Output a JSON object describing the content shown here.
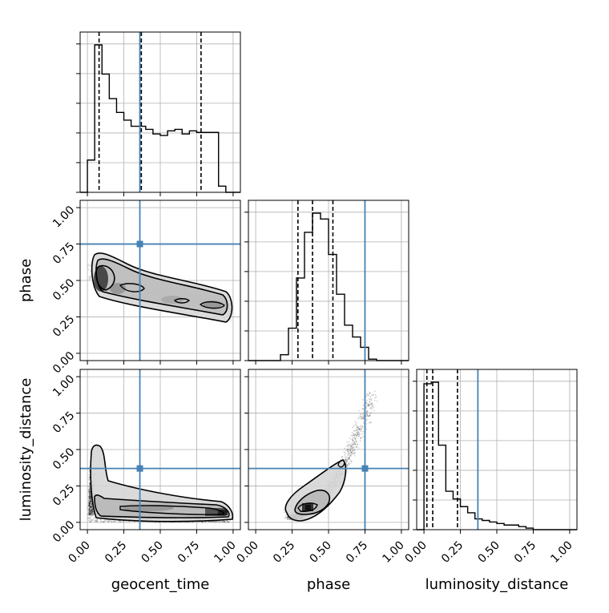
{
  "chart_data": {
    "type": "corner",
    "parameters": [
      "geocent_time",
      "phase",
      "luminosity_distance"
    ],
    "ticks": [
      "0.00",
      "0.25",
      "0.50",
      "0.75",
      "1.00"
    ],
    "tick_values": [
      0,
      0.25,
      0.5,
      0.75,
      1.0
    ],
    "range": [
      -0.05,
      1.05
    ],
    "grid": true,
    "truth_color": "#4682b4",
    "truths": {
      "geocent_time": 0.36,
      "phase": 0.75,
      "luminosity_distance": 0.37
    },
    "quantiles": {
      "geocent_time": [
        0.08,
        0.37,
        0.78
      ],
      "phase": [
        0.29,
        0.39,
        0.53
      ],
      "luminosity_distance": [
        0.02,
        0.06,
        0.23
      ]
    },
    "histograms": {
      "geocent_time": {
        "edges": [
          -0.05,
          0.0,
          0.05,
          0.1,
          0.15,
          0.2,
          0.25,
          0.3,
          0.35,
          0.4,
          0.45,
          0.5,
          0.55,
          0.6,
          0.65,
          0.7,
          0.75,
          0.8,
          0.85,
          0.9,
          0.95,
          1.0,
          1.05
        ],
        "counts": [
          0.0,
          0.21,
          0.96,
          0.77,
          0.61,
          0.52,
          0.47,
          0.43,
          0.43,
          0.41,
          0.38,
          0.37,
          0.4,
          0.41,
          0.38,
          0.4,
          0.39,
          0.39,
          0.39,
          0.04,
          0.0,
          0.0
        ]
      },
      "phase": {
        "edges": [
          0.0,
          0.05,
          0.1,
          0.15,
          0.2,
          0.25,
          0.3,
          0.35,
          0.4,
          0.45,
          0.5,
          0.55,
          0.6,
          0.65,
          0.7,
          0.75,
          0.8,
          0.85,
          0.9,
          0.95,
          1.0
        ],
        "counts": [
          0,
          0,
          0,
          0.0,
          0.04,
          0.22,
          0.56,
          0.87,
          1.0,
          0.96,
          0.72,
          0.45,
          0.24,
          0.16,
          0.09,
          0.01,
          0,
          0,
          0,
          0
        ]
      },
      "luminosity_distance": {
        "edges": [
          -0.05,
          0.0,
          0.05,
          0.1,
          0.15,
          0.2,
          0.25,
          0.3,
          0.35,
          0.4,
          0.45,
          0.5,
          0.55,
          0.6,
          0.65,
          0.7,
          0.75,
          0.8,
          0.85,
          0.9,
          0.95,
          1.0,
          1.05
        ],
        "counts": [
          0.0,
          0.95,
          0.96,
          0.55,
          0.25,
          0.2,
          0.15,
          0.11,
          0.07,
          0.06,
          0.05,
          0.04,
          0.03,
          0.03,
          0.02,
          0.01,
          0.0,
          0.0,
          0.0,
          0.0,
          0.0,
          0.0
        ]
      }
    }
  }
}
